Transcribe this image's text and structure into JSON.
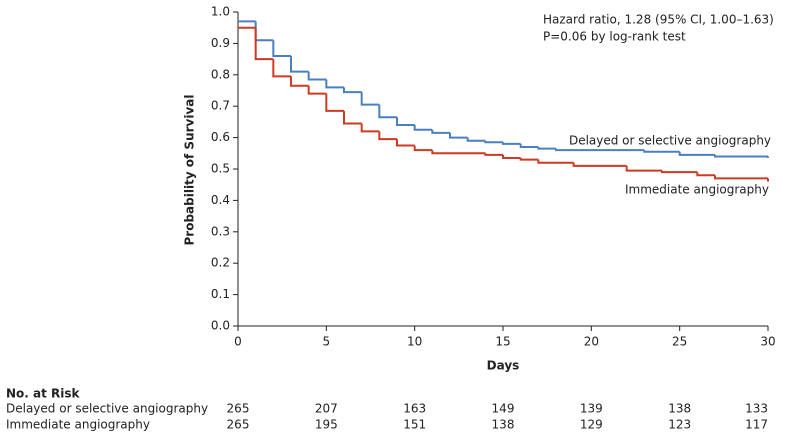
{
  "chart_data": {
    "type": "step",
    "x_label": "Days",
    "y_label": "Probability of Survival",
    "xlim": [
      0,
      30
    ],
    "xticks": [
      0,
      5,
      10,
      15,
      20,
      25,
      30
    ],
    "ylim": [
      0,
      1
    ],
    "yticks": [
      {
        "value": 0,
        "label": "0.0"
      },
      0.1,
      0.2,
      0.3,
      0.4,
      0.5,
      0.6,
      0.7,
      0.8,
      0.9,
      {
        "value": 1,
        "label": "1.0"
      }
    ],
    "annotations": [
      "Hazard ratio, 1.28 (95% CI, 1.00–1.63)",
      "P=0.06 by log-rank test"
    ],
    "series": [
      {
        "name": "Delayed or selective angiography",
        "color": "#4a7fc1",
        "x": [
          0,
          1,
          2,
          3,
          4,
          5,
          6,
          7,
          8,
          9,
          10,
          11,
          12,
          13,
          14,
          15,
          16,
          17,
          18,
          23,
          25,
          27,
          30
        ],
        "values": [
          0.97,
          0.91,
          0.86,
          0.81,
          0.785,
          0.76,
          0.745,
          0.705,
          0.665,
          0.64,
          0.625,
          0.615,
          0.6,
          0.59,
          0.585,
          0.58,
          0.57,
          0.565,
          0.56,
          0.555,
          0.545,
          0.54,
          0.535
        ]
      },
      {
        "name": "Immediate angiography",
        "color": "#cc3b22",
        "x": [
          0,
          1,
          2,
          3,
          4,
          5,
          6,
          7,
          8,
          9,
          10,
          11,
          14,
          15,
          16,
          17,
          19,
          22,
          24,
          26,
          27,
          30
        ],
        "values": [
          0.95,
          0.85,
          0.795,
          0.765,
          0.74,
          0.685,
          0.645,
          0.62,
          0.595,
          0.575,
          0.56,
          0.55,
          0.545,
          0.535,
          0.53,
          0.52,
          0.51,
          0.495,
          0.49,
          0.48,
          0.47,
          0.46
        ]
      }
    ],
    "risk_table": {
      "title": "No. at Risk",
      "rows": [
        {
          "name": "Delayed or selective angiography",
          "values": [
            265,
            207,
            163,
            149,
            139,
            138,
            133
          ]
        },
        {
          "name": "Immediate angiography",
          "values": [
            265,
            195,
            151,
            138,
            129,
            123,
            117
          ]
        }
      ]
    }
  }
}
